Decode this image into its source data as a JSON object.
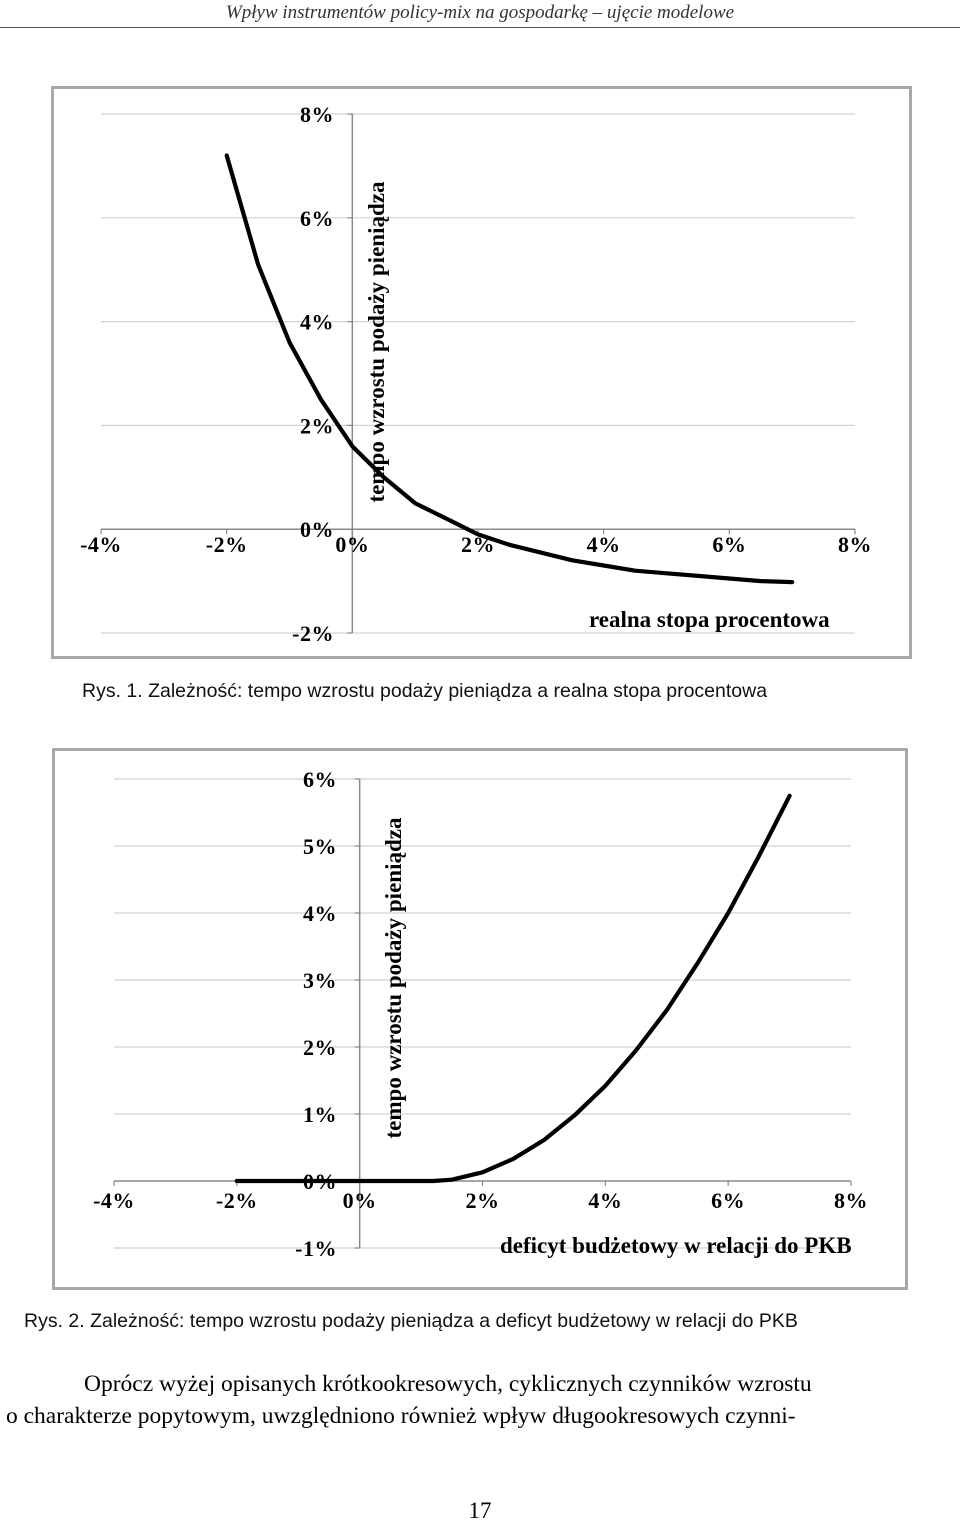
{
  "header": {
    "running_title": "Wpływ instrumentów policy-mix na gospodarkę – ujęcie  modelowe"
  },
  "figures": [
    {
      "caption": "Rys. 1. Zależność: tempo wzrostu podaży pieniądza a realna stopa procentowa"
    },
    {
      "caption": "Rys. 2. Zależność: tempo wzrostu podaży pieniądza a deficyt budżetowy w relacji do PKB"
    }
  ],
  "body_text": {
    "line1": "Oprócz wyżej opisanych krótkookresowych, cyklicznych czynników wzrostu",
    "line2": "o charakterze popytowym, uwzględniono również wpływ długookresowych czynni-"
  },
  "page_number": "17",
  "chart_data": [
    {
      "type": "line",
      "xlabel": "realna stopa  procentowa",
      "ylabel": "tempo wzrostu podaży pieniądza",
      "xlim": [
        -4,
        8
      ],
      "ylim": [
        -2,
        8
      ],
      "x_ticks": [
        -4,
        -2,
        0,
        2,
        4,
        6,
        8
      ],
      "y_ticks": [
        -2,
        0,
        2,
        4,
        6,
        8
      ],
      "x_tick_labels": [
        "-4%",
        "-2%",
        "0%",
        "2%",
        "4%",
        "6%",
        "8%"
      ],
      "y_tick_labels": [
        "-2%",
        "0%",
        "2%",
        "4%",
        "6%",
        "8%"
      ],
      "grid": "horizontal",
      "line_color": "#000000",
      "series": [
        {
          "x": [
            -2.0,
            -1.5,
            -1.0,
            -0.5,
            0.0,
            0.5,
            1.0,
            1.5,
            2.0,
            2.5,
            3.0,
            3.5,
            4.0,
            4.5,
            5.0,
            5.5,
            6.0,
            6.5,
            7.0
          ],
          "y": [
            7.2,
            5.1,
            3.6,
            2.5,
            1.6,
            1.0,
            0.5,
            0.2,
            -0.1,
            -0.3,
            -0.45,
            -0.6,
            -0.7,
            -0.8,
            -0.85,
            -0.9,
            -0.95,
            -1.0,
            -1.02
          ]
        }
      ]
    },
    {
      "type": "line",
      "xlabel": "deficyt budżetowy w relacji do PKB",
      "ylabel": "tempo wzrostu podaży pieniądza",
      "xlim": [
        -4,
        8
      ],
      "ylim": [
        -1,
        6
      ],
      "x_ticks": [
        -4,
        -2,
        0,
        2,
        4,
        6,
        8
      ],
      "y_ticks": [
        -1,
        0,
        1,
        2,
        3,
        4,
        5,
        6
      ],
      "x_tick_labels": [
        "-4%",
        "-2%",
        "0%",
        "2%",
        "4%",
        "6%",
        "8%"
      ],
      "y_tick_labels": [
        "-1%",
        "0%",
        "1%",
        "2%",
        "3%",
        "4%",
        "5%",
        "6%"
      ],
      "grid": "horizontal",
      "line_color": "#000000",
      "series": [
        {
          "x": [
            -2.0,
            -1.0,
            0.0,
            1.0,
            1.2,
            1.5,
            2.0,
            2.5,
            3.0,
            3.5,
            4.0,
            4.5,
            5.0,
            5.5,
            6.0,
            6.5,
            7.0
          ],
          "y": [
            0.0,
            0.0,
            0.0,
            0.0,
            0.0,
            0.02,
            0.13,
            0.33,
            0.61,
            0.98,
            1.42,
            1.95,
            2.55,
            3.25,
            4.0,
            4.85,
            5.75
          ]
        }
      ]
    }
  ]
}
